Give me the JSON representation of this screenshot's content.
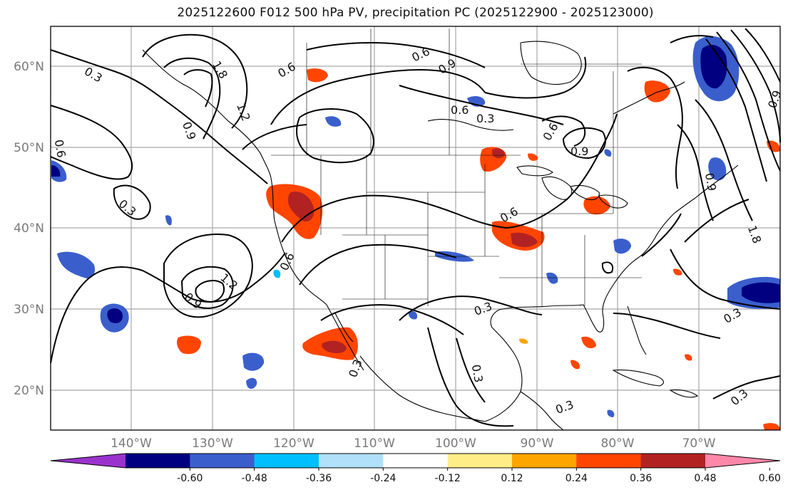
{
  "title": "2025122600 F012 500 hPa PV, precipitation PC (2025122900 - 2025123000)",
  "latitude_labels": [
    "60°N",
    "50°N",
    "40°N",
    "30°N",
    "20°N"
  ],
  "longitude_labels": [
    "140°W",
    "130°W",
    "120°W",
    "110°W",
    "100°W",
    "90°W",
    "80°W",
    "70°W"
  ],
  "contour_labels": [
    "0.3",
    "0.6",
    "0.9",
    "1.2",
    "1.8",
    "0.6",
    "0.9",
    "0.3",
    "0.6",
    "0.6",
    "0.9",
    "0.3",
    "0.6",
    "1.2",
    "0.9",
    "0.3",
    "0.3",
    "0.6",
    "0.3",
    "0.3",
    "0.9",
    "0.6",
    "0.3",
    "1.8",
    "0.3",
    "0.9"
  ],
  "colorbar": {
    "tick_labels": [
      "-0.60",
      "-0.48",
      "-0.36",
      "-0.24",
      "-0.12",
      "0.12",
      "0.24",
      "0.36",
      "0.48",
      "0.60"
    ],
    "colors": [
      "#9933cc",
      "#000080",
      "#3a5fcd",
      "#00bfff",
      "#b0e0fa",
      "#ffffff",
      "#ffee88",
      "#ffa500",
      "#ff4500",
      "#b22222",
      "#ff88aa"
    ]
  },
  "precipitation_colors": {
    "neg_strong": "#000080",
    "neg_mid": "#3a5fcd",
    "neg_light": "#00bfff",
    "pos_light": "#ffee88",
    "pos_mid": "#ffa500",
    "pos_strong": "#ff4500",
    "pos_max": "#b22222"
  }
}
